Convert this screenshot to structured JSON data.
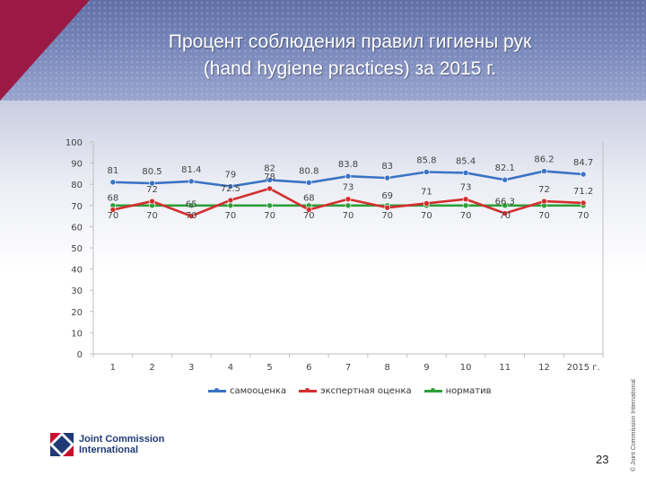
{
  "slide": {
    "title_line1": "Процент соблюдения правил гигиены рук",
    "title_line2": "(hand hygiene practices) за 2015 г.",
    "page_number": "23",
    "copyright": "© Joint Commission International",
    "logo_line1": "Joint Commission",
    "logo_line2": "International"
  },
  "colors": {
    "header": "#6e7cb3",
    "corner": "#9b1a45",
    "samootsenka": "#3b73c4",
    "expert": "#d32f2f",
    "norm": "#2e9e3a"
  },
  "chart_data": {
    "type": "line",
    "categories": [
      "1",
      "2",
      "3",
      "4",
      "5",
      "6",
      "7",
      "8",
      "9",
      "10",
      "11",
      "12",
      "2015 г."
    ],
    "ylim": [
      0,
      100
    ],
    "yticks": [
      0,
      10,
      20,
      30,
      40,
      50,
      60,
      70,
      80,
      90,
      100
    ],
    "grid": false,
    "legend_position": "bottom",
    "series": [
      {
        "name": "самооценка",
        "color": "#3b73c4",
        "values": [
          81,
          80.5,
          81.4,
          79,
          82,
          80.8,
          83.8,
          83,
          85.8,
          85.4,
          82.1,
          86.2,
          84.7
        ],
        "labels": [
          "81",
          "80.5",
          "81.4",
          "79",
          "82",
          "80.8",
          "83.8",
          "83",
          "85.8",
          "85.4",
          "82.1",
          "86.2",
          "84.7"
        ]
      },
      {
        "name": "экспертная оценка",
        "color": "#d32f2f",
        "values": [
          68,
          72,
          65,
          72.5,
          78,
          68,
          73,
          69,
          71,
          73,
          66.3,
          72,
          71.2
        ],
        "labels": [
          "68",
          "72",
          "65",
          "72.5",
          "78",
          "68",
          "73",
          "69",
          "71",
          "73",
          "66.3",
          "72",
          "71.2"
        ]
      },
      {
        "name": "норматив",
        "color": "#2e9e3a",
        "values": [
          70,
          70,
          70,
          70,
          70,
          70,
          70,
          70,
          70,
          70,
          70,
          70,
          70
        ],
        "labels": [
          "70",
          "70",
          "70",
          "70",
          "70",
          "70",
          "70",
          "70",
          "70",
          "70",
          "70",
          "70",
          "70"
        ]
      }
    ]
  }
}
